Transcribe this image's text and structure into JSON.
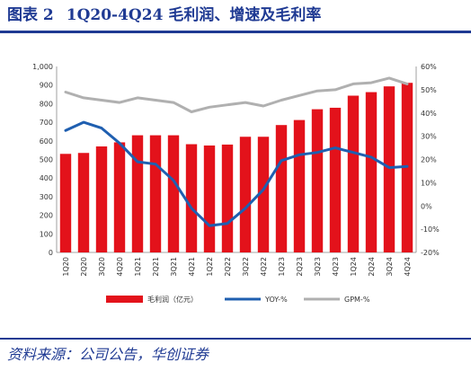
{
  "header": {
    "figure_label": "图表 2",
    "title": "1Q20-4Q24 毛利润、增速及毛利率"
  },
  "footer": {
    "source": "资料来源：公司公告，华创证券"
  },
  "colors": {
    "bar": "#e3121b",
    "yoy": "#1f5fb0",
    "gpm": "#b0b0b0",
    "accent": "#1f3a93"
  },
  "chart_data": {
    "type": "bar",
    "categories": [
      "1Q20",
      "2Q20",
      "3Q20",
      "4Q20",
      "1Q21",
      "2Q21",
      "3Q21",
      "4Q21",
      "1Q22",
      "2Q22",
      "3Q22",
      "4Q22",
      "1Q23",
      "2Q23",
      "3Q23",
      "4Q23",
      "1Q24",
      "2Q24",
      "3Q24",
      "4Q24"
    ],
    "left_axis": {
      "ylim": [
        0,
        1000
      ],
      "ticks": [
        0,
        100,
        200,
        300,
        400,
        500,
        600,
        700,
        800,
        900,
        1000
      ],
      "tick_labels": [
        "0",
        "100",
        "200",
        "300",
        "400",
        "500",
        "600",
        "700",
        "800",
        "900",
        "1,000"
      ]
    },
    "right_axis": {
      "ylim": [
        -20,
        60
      ],
      "ticks": [
        -20,
        -10,
        0,
        10,
        20,
        30,
        40,
        50,
        60
      ],
      "tick_labels": [
        "-20%",
        "-10%",
        "0%",
        "10%",
        "20%",
        "30%",
        "40%",
        "50%",
        "60%"
      ]
    },
    "grid": false,
    "legend_position": "bottom",
    "series": [
      {
        "name": "毛利润（亿元）",
        "type": "bar",
        "axis": "left",
        "values": [
          530,
          535,
          570,
          592,
          630,
          630,
          630,
          582,
          575,
          580,
          622,
          622,
          685,
          712,
          770,
          778,
          843,
          862,
          893,
          912
        ]
      },
      {
        "name": "YOY-%",
        "type": "line",
        "axis": "right",
        "values": [
          32.5,
          36,
          33.5,
          27,
          19,
          18,
          11,
          -1,
          -8.5,
          -7.5,
          -1,
          7,
          19.5,
          22,
          23,
          25,
          23,
          21,
          16.5,
          17
        ]
      },
      {
        "name": "GPM-%",
        "type": "line",
        "axis": "right",
        "values": [
          49,
          46.5,
          45.5,
          44.5,
          46.5,
          45.5,
          44.5,
          40.5,
          42.5,
          43.5,
          44.5,
          43,
          45.5,
          47.5,
          49.5,
          50,
          52.5,
          53,
          55,
          52.5
        ]
      }
    ]
  }
}
